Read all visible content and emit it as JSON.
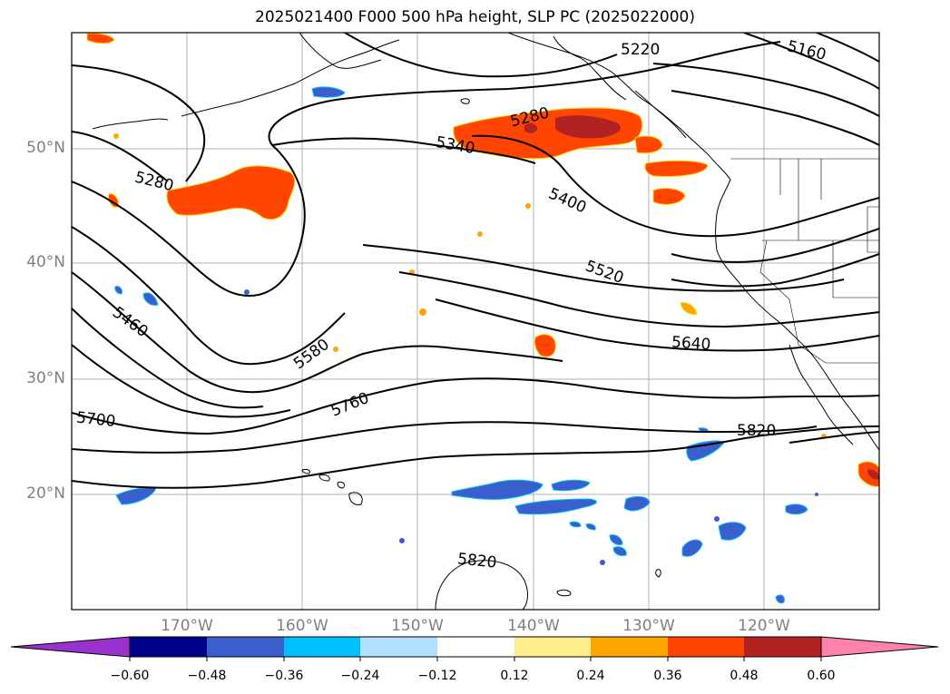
{
  "title": "2025021400 F000 500 hPa height, SLP PC (2025022000)",
  "map": {
    "projection": "mercator",
    "lon_range": [
      -180,
      -110
    ],
    "lat_range": [
      10,
      60
    ],
    "lat_ticks": [
      "50°N",
      "40°N",
      "30°N",
      "20°N"
    ],
    "lon_ticks": [
      "170°W",
      "160°W",
      "150°W",
      "140°W",
      "130°W",
      "120°W"
    ],
    "gridlines": true,
    "contour_variable": "500 hPa height",
    "contour_labels": [
      "5220",
      "5160",
      "5280",
      "5340",
      "5280",
      "5400",
      "5460",
      "5520",
      "5580",
      "5640",
      "5760",
      "5700",
      "5820",
      "5820"
    ],
    "shaded_variable": "SLP PC"
  },
  "colorbar": {
    "ticks": [
      "−0.60",
      "−0.48",
      "−0.36",
      "−0.24",
      "−0.12",
      "0.12",
      "0.24",
      "0.36",
      "0.48",
      "0.60"
    ],
    "colors": {
      "under": "#9932cc",
      "bins": [
        "#00008b",
        "#3a5fcd",
        "#00bfff",
        "#b0e2ff",
        "#ffffff",
        "#ffec8b",
        "#ffa500",
        "#ff4500",
        "#b22222"
      ],
      "over": "#ff82ab"
    },
    "extend": "both"
  }
}
